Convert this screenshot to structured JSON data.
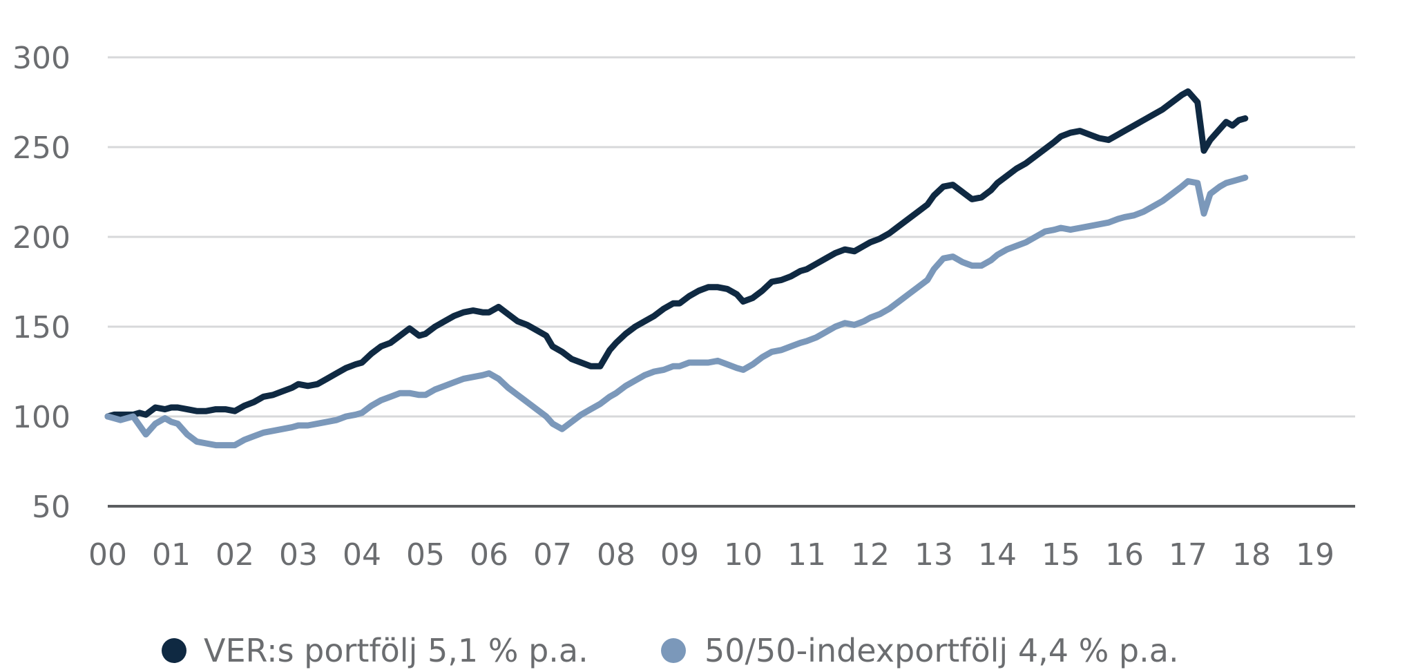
{
  "chart_data": {
    "type": "line",
    "x": [
      "00",
      "01",
      "02",
      "03",
      "04",
      "05",
      "06",
      "07",
      "08",
      "09",
      "10",
      "11",
      "12",
      "13",
      "14",
      "15",
      "16",
      "17",
      "18",
      "19"
    ],
    "ylim": [
      50,
      300
    ],
    "yticks": [
      "50",
      "100",
      "150",
      "200",
      "250",
      "300"
    ],
    "grid": true,
    "legend_position": "bottom-center",
    "colors": {
      "series_1": "#0f2942",
      "series_2": "#7b98ba",
      "grid": "#d7d8da",
      "axis": "#5b5d60",
      "tick_text": "#6b6d70"
    },
    "series": [
      {
        "name": "VER:s portfölj 5,1 % p.a.",
        "color": "#0f2942",
        "points": [
          [
            0.0,
            100
          ],
          [
            0.1,
            101
          ],
          [
            0.2,
            101
          ],
          [
            0.3,
            101
          ],
          [
            0.4,
            101
          ],
          [
            0.5,
            102
          ],
          [
            0.6,
            101
          ],
          [
            0.75,
            105
          ],
          [
            0.9,
            104
          ],
          [
            1.0,
            105
          ],
          [
            1.1,
            105
          ],
          [
            1.25,
            104
          ],
          [
            1.4,
            103
          ],
          [
            1.55,
            103
          ],
          [
            1.7,
            104
          ],
          [
            1.85,
            104
          ],
          [
            2.0,
            103
          ],
          [
            2.15,
            106
          ],
          [
            2.3,
            108
          ],
          [
            2.45,
            111
          ],
          [
            2.6,
            112
          ],
          [
            2.75,
            114
          ],
          [
            2.9,
            116
          ],
          [
            3.0,
            118
          ],
          [
            3.15,
            117
          ],
          [
            3.3,
            118
          ],
          [
            3.45,
            121
          ],
          [
            3.6,
            124
          ],
          [
            3.75,
            127
          ],
          [
            3.9,
            129
          ],
          [
            4.0,
            130
          ],
          [
            4.15,
            135
          ],
          [
            4.3,
            139
          ],
          [
            4.45,
            141
          ],
          [
            4.6,
            145
          ],
          [
            4.75,
            149
          ],
          [
            4.9,
            145
          ],
          [
            5.0,
            146
          ],
          [
            5.15,
            150
          ],
          [
            5.3,
            153
          ],
          [
            5.45,
            156
          ],
          [
            5.6,
            158
          ],
          [
            5.75,
            159
          ],
          [
            5.9,
            158
          ],
          [
            6.0,
            158
          ],
          [
            6.15,
            161
          ],
          [
            6.3,
            157
          ],
          [
            6.45,
            153
          ],
          [
            6.6,
            151
          ],
          [
            6.75,
            148
          ],
          [
            6.9,
            145
          ],
          [
            7.0,
            139
          ],
          [
            7.15,
            136
          ],
          [
            7.3,
            132
          ],
          [
            7.45,
            130
          ],
          [
            7.6,
            128
          ],
          [
            7.75,
            128
          ],
          [
            7.9,
            137
          ],
          [
            8.0,
            141
          ],
          [
            8.15,
            146
          ],
          [
            8.3,
            150
          ],
          [
            8.45,
            153
          ],
          [
            8.6,
            156
          ],
          [
            8.75,
            160
          ],
          [
            8.9,
            163
          ],
          [
            9.0,
            163
          ],
          [
            9.15,
            167
          ],
          [
            9.3,
            170
          ],
          [
            9.45,
            172
          ],
          [
            9.6,
            172
          ],
          [
            9.75,
            171
          ],
          [
            9.9,
            168
          ],
          [
            10.0,
            164
          ],
          [
            10.15,
            166
          ],
          [
            10.3,
            170
          ],
          [
            10.45,
            175
          ],
          [
            10.6,
            176
          ],
          [
            10.75,
            178
          ],
          [
            10.9,
            181
          ],
          [
            11.0,
            182
          ],
          [
            11.15,
            185
          ],
          [
            11.3,
            188
          ],
          [
            11.45,
            191
          ],
          [
            11.6,
            193
          ],
          [
            11.75,
            192
          ],
          [
            11.9,
            195
          ],
          [
            12.0,
            197
          ],
          [
            12.15,
            199
          ],
          [
            12.3,
            202
          ],
          [
            12.45,
            206
          ],
          [
            12.6,
            210
          ],
          [
            12.75,
            214
          ],
          [
            12.9,
            218
          ],
          [
            13.0,
            223
          ],
          [
            13.15,
            228
          ],
          [
            13.3,
            229
          ],
          [
            13.45,
            225
          ],
          [
            13.6,
            221
          ],
          [
            13.75,
            222
          ],
          [
            13.9,
            226
          ],
          [
            14.0,
            230
          ],
          [
            14.15,
            234
          ],
          [
            14.3,
            238
          ],
          [
            14.45,
            241
          ],
          [
            14.6,
            245
          ],
          [
            14.75,
            249
          ],
          [
            14.9,
            253
          ],
          [
            15.0,
            256
          ],
          [
            15.15,
            258
          ],
          [
            15.3,
            259
          ],
          [
            15.45,
            257
          ],
          [
            15.6,
            255
          ],
          [
            15.75,
            254
          ],
          [
            15.9,
            257
          ],
          [
            16.0,
            259
          ],
          [
            16.15,
            262
          ],
          [
            16.3,
            265
          ],
          [
            16.45,
            268
          ],
          [
            16.6,
            271
          ],
          [
            16.75,
            275
          ],
          [
            16.9,
            279
          ],
          [
            17.0,
            281
          ],
          [
            17.15,
            275
          ],
          [
            17.25,
            248
          ],
          [
            17.35,
            254
          ],
          [
            17.5,
            260
          ],
          [
            17.6,
            264
          ],
          [
            17.7,
            262
          ],
          [
            17.8,
            265
          ],
          [
            17.9,
            266
          ]
        ]
      },
      {
        "name": "50/50-indexportfölj 4,4 % p.a.",
        "color": "#7b98ba",
        "points": [
          [
            0.0,
            100
          ],
          [
            0.1,
            99
          ],
          [
            0.2,
            98
          ],
          [
            0.3,
            99
          ],
          [
            0.4,
            100
          ],
          [
            0.5,
            95
          ],
          [
            0.6,
            90
          ],
          [
            0.75,
            96
          ],
          [
            0.9,
            99
          ],
          [
            1.0,
            97
          ],
          [
            1.1,
            96
          ],
          [
            1.25,
            90
          ],
          [
            1.4,
            86
          ],
          [
            1.55,
            85
          ],
          [
            1.7,
            84
          ],
          [
            1.85,
            84
          ],
          [
            2.0,
            84
          ],
          [
            2.15,
            87
          ],
          [
            2.3,
            89
          ],
          [
            2.45,
            91
          ],
          [
            2.6,
            92
          ],
          [
            2.75,
            93
          ],
          [
            2.9,
            94
          ],
          [
            3.0,
            95
          ],
          [
            3.15,
            95
          ],
          [
            3.3,
            96
          ],
          [
            3.45,
            97
          ],
          [
            3.6,
            98
          ],
          [
            3.75,
            100
          ],
          [
            3.9,
            101
          ],
          [
            4.0,
            102
          ],
          [
            4.15,
            106
          ],
          [
            4.3,
            109
          ],
          [
            4.45,
            111
          ],
          [
            4.6,
            113
          ],
          [
            4.75,
            113
          ],
          [
            4.9,
            112
          ],
          [
            5.0,
            112
          ],
          [
            5.15,
            115
          ],
          [
            5.3,
            117
          ],
          [
            5.45,
            119
          ],
          [
            5.6,
            121
          ],
          [
            5.75,
            122
          ],
          [
            5.9,
            123
          ],
          [
            6.0,
            124
          ],
          [
            6.15,
            121
          ],
          [
            6.3,
            116
          ],
          [
            6.45,
            112
          ],
          [
            6.6,
            108
          ],
          [
            6.75,
            104
          ],
          [
            6.9,
            100
          ],
          [
            7.0,
            96
          ],
          [
            7.15,
            93
          ],
          [
            7.3,
            97
          ],
          [
            7.45,
            101
          ],
          [
            7.6,
            104
          ],
          [
            7.75,
            107
          ],
          [
            7.9,
            111
          ],
          [
            8.0,
            113
          ],
          [
            8.15,
            117
          ],
          [
            8.3,
            120
          ],
          [
            8.45,
            123
          ],
          [
            8.6,
            125
          ],
          [
            8.75,
            126
          ],
          [
            8.9,
            128
          ],
          [
            9.0,
            128
          ],
          [
            9.15,
            130
          ],
          [
            9.3,
            130
          ],
          [
            9.45,
            130
          ],
          [
            9.6,
            131
          ],
          [
            9.75,
            129
          ],
          [
            9.9,
            127
          ],
          [
            10.0,
            126
          ],
          [
            10.15,
            129
          ],
          [
            10.3,
            133
          ],
          [
            10.45,
            136
          ],
          [
            10.6,
            137
          ],
          [
            10.75,
            139
          ],
          [
            10.9,
            141
          ],
          [
            11.0,
            142
          ],
          [
            11.15,
            144
          ],
          [
            11.3,
            147
          ],
          [
            11.45,
            150
          ],
          [
            11.6,
            152
          ],
          [
            11.75,
            151
          ],
          [
            11.9,
            153
          ],
          [
            12.0,
            155
          ],
          [
            12.15,
            157
          ],
          [
            12.3,
            160
          ],
          [
            12.45,
            164
          ],
          [
            12.6,
            168
          ],
          [
            12.75,
            172
          ],
          [
            12.9,
            176
          ],
          [
            13.0,
            182
          ],
          [
            13.15,
            188
          ],
          [
            13.3,
            189
          ],
          [
            13.45,
            186
          ],
          [
            13.6,
            184
          ],
          [
            13.75,
            184
          ],
          [
            13.9,
            187
          ],
          [
            14.0,
            190
          ],
          [
            14.15,
            193
          ],
          [
            14.3,
            195
          ],
          [
            14.45,
            197
          ],
          [
            14.6,
            200
          ],
          [
            14.75,
            203
          ],
          [
            14.9,
            204
          ],
          [
            15.0,
            205
          ],
          [
            15.15,
            204
          ],
          [
            15.3,
            205
          ],
          [
            15.45,
            206
          ],
          [
            15.6,
            207
          ],
          [
            15.75,
            208
          ],
          [
            15.9,
            210
          ],
          [
            16.0,
            211
          ],
          [
            16.15,
            212
          ],
          [
            16.3,
            214
          ],
          [
            16.45,
            217
          ],
          [
            16.6,
            220
          ],
          [
            16.75,
            224
          ],
          [
            16.9,
            228
          ],
          [
            17.0,
            231
          ],
          [
            17.15,
            230
          ],
          [
            17.25,
            213
          ],
          [
            17.35,
            224
          ],
          [
            17.5,
            228
          ],
          [
            17.6,
            230
          ],
          [
            17.7,
            231
          ],
          [
            17.8,
            232
          ],
          [
            17.9,
            233
          ]
        ]
      }
    ]
  }
}
